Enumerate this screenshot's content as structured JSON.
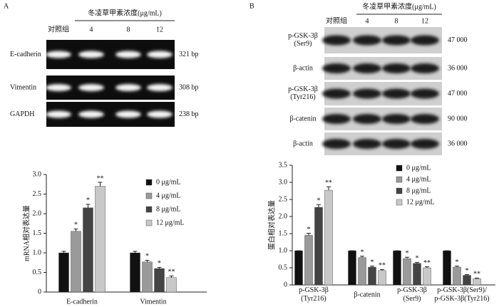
{
  "gels": [
    {
      "label": "A",
      "header": "冬凌草甲素浓度(μg/mL)",
      "lanes": [
        "对照组",
        "4",
        "8",
        "12"
      ],
      "rows": [
        {
          "name": "E-cadherin",
          "size": "321 bp"
        },
        {
          "name": "Vimentin",
          "size": "308 bp"
        },
        {
          "name": "GAPDH",
          "size": "238 bp"
        }
      ]
    },
    {
      "label": "B",
      "header": "冬凌草甲素浓度(μg/mL)",
      "lanes": [
        "对照组",
        "4",
        "8",
        "12"
      ],
      "rows": [
        {
          "name": "p-GSK-3β\n(Ser9)",
          "size": "47 000"
        },
        {
          "name": "β-actin",
          "size": "36 000"
        },
        {
          "name": "p-GSK-3β\n(Tyr216)",
          "size": "47 000"
        },
        {
          "name": "β-catenin",
          "size": "90 000"
        },
        {
          "name": "β-actin",
          "size": "36 000"
        }
      ]
    }
  ],
  "chart_data": [
    {
      "type": "bar",
      "y_label": "mRNA相对表达量",
      "categories": [
        "E-cadherin",
        "Vimentin"
      ],
      "ylim": [
        0,
        3.0
      ],
      "yticks": [
        0,
        0.5,
        {
          "value": 1,
          "label": "1.0"
        },
        1.5,
        {
          "value": 2,
          "label": "2.0"
        },
        2.5,
        {
          "value": 3,
          "label": "3.0"
        }
      ],
      "series": [
        {
          "name": "0 μg/mL",
          "color": "#111111",
          "values": [
            1.0,
            1.0
          ],
          "errors": [
            0.04,
            0.04
          ],
          "annotations": [
            null,
            null
          ]
        },
        {
          "name": "4 μg/mL",
          "color": "#9a9a9a",
          "values": [
            1.55,
            0.77
          ],
          "errors": [
            0.06,
            0.04
          ],
          "annotations": [
            "*",
            "*"
          ]
        },
        {
          "name": "8 μg/mL",
          "color": "#444444",
          "values": [
            2.15,
            0.6
          ],
          "errors": [
            0.09,
            0.03
          ],
          "annotations": [
            "*",
            "*"
          ]
        },
        {
          "name": "12 μg/mL",
          "color": "#c8c8c8",
          "values": [
            2.7,
            0.37
          ],
          "errors": [
            0.1,
            0.04
          ],
          "annotations": [
            "**",
            "**"
          ]
        }
      ]
    },
    {
      "type": "bar",
      "y_label": "蛋白相对表达量",
      "categories": [
        "p-GSK-3β\n(Tyr216)",
        "β-catenin",
        "p-GSK-3β\n(Ser9)",
        "p-GSK-3β(Ser9)/\np-GSK-3β(Tyr216)"
      ],
      "ylim": [
        0,
        3.5
      ],
      "yticks": [
        0,
        0.5,
        {
          "value": 1,
          "label": "1.0"
        },
        1.5,
        {
          "value": 2,
          "label": "2.0"
        },
        2.5,
        {
          "value": 3,
          "label": "3.0"
        },
        3.5
      ],
      "series": [
        {
          "name": "0 μg/mL",
          "color": "#111111",
          "values": [
            1.0,
            1.0,
            1.0,
            1.0
          ],
          "errors": [
            0.0,
            0.0,
            0.0,
            0.0
          ],
          "annotations": [
            null,
            null,
            null,
            null
          ]
        },
        {
          "name": "4 μg/mL",
          "color": "#9a9a9a",
          "values": [
            1.45,
            0.8,
            0.77,
            0.52
          ],
          "errors": [
            0.06,
            0.04,
            0.04,
            0.03
          ],
          "annotations": [
            "*",
            "*",
            "*",
            "*"
          ]
        },
        {
          "name": "8 μg/mL",
          "color": "#444444",
          "values": [
            2.27,
            0.52,
            0.63,
            0.28
          ],
          "errors": [
            0.08,
            0.03,
            0.03,
            0.02
          ],
          "annotations": [
            "*",
            "*",
            "*",
            "*"
          ]
        },
        {
          "name": "12 μg/mL",
          "color": "#c8c8c8",
          "values": [
            2.77,
            0.42,
            0.5,
            0.18
          ],
          "errors": [
            0.1,
            0.03,
            0.03,
            0.02
          ],
          "annotations": [
            "**",
            "**",
            "**",
            "**"
          ]
        }
      ]
    }
  ]
}
